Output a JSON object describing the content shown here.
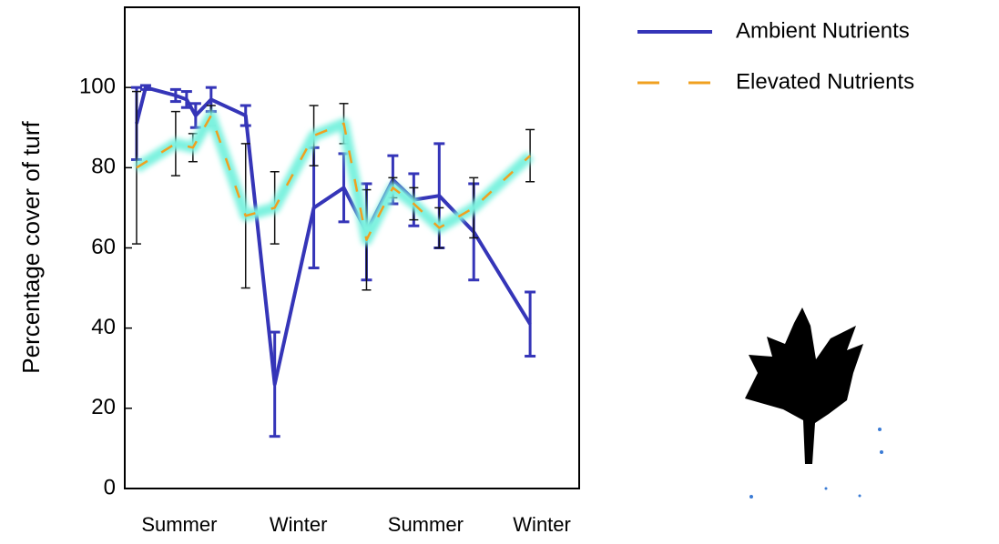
{
  "chart_data": {
    "type": "line",
    "ylabel": "Percentage cover of turf",
    "xlim": [
      0,
      100
    ],
    "ylim": [
      0,
      120
    ],
    "xticks": [
      {
        "value": 12,
        "label": "Summer"
      },
      {
        "value": 38.2,
        "label": "Winter"
      },
      {
        "value": 66.2,
        "label": "Summer"
      },
      {
        "value": 91.8,
        "label": "Winter"
      }
    ],
    "yticks": [
      0,
      20,
      40,
      60,
      80,
      100
    ],
    "legend": "upper right outside",
    "series": [
      {
        "name": "Ambient Nutrients",
        "color": "#3535b8",
        "style": "solid",
        "error_color": "#3535b8",
        "x": [
          2.6,
          4.6,
          11.2,
          13.6,
          15.6,
          19,
          26.6,
          33,
          41.6,
          48.2,
          53.2,
          59,
          63.6,
          69.2,
          76.8,
          89.2
        ],
        "values": [
          91,
          100,
          98,
          97,
          93,
          97,
          93,
          26,
          70,
          75,
          64,
          77,
          72,
          73,
          64,
          41
        ],
        "errors": [
          9,
          0.5,
          1.5,
          2,
          3,
          3,
          2.5,
          13,
          15,
          8.5,
          12,
          6,
          6.5,
          13,
          12,
          8
        ]
      },
      {
        "name": "Elevated Nutrients",
        "color": "#f0a020",
        "style": "dashed",
        "glow_color": "#7df2df",
        "error_color": "#111111",
        "x": [
          2.6,
          11.2,
          15,
          19,
          26.6,
          33,
          41.6,
          48.2,
          53.2,
          59,
          63.6,
          69.2,
          76.8,
          89.2
        ],
        "values": [
          80,
          86,
          85,
          93,
          68,
          70,
          88,
          91,
          62,
          75,
          71,
          65,
          70,
          83
        ],
        "errors": [
          19,
          8,
          3.5,
          2.5,
          18,
          9,
          7.5,
          5,
          12.5,
          2.5,
          4,
          5,
          7.5,
          6.5
        ]
      }
    ]
  }
}
